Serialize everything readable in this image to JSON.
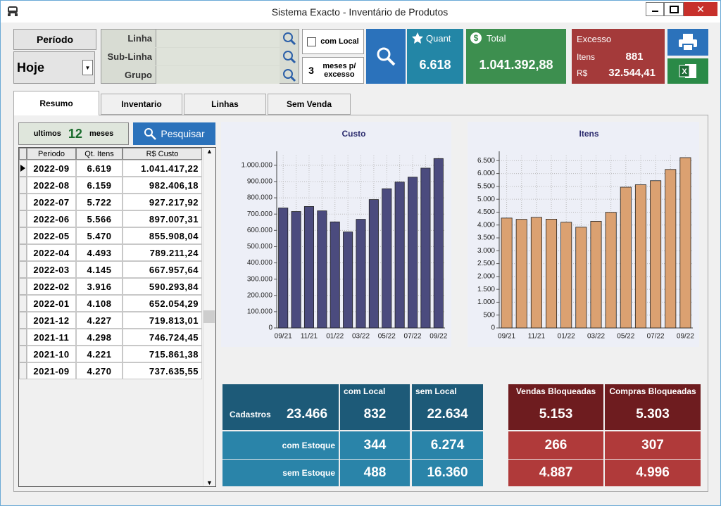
{
  "window": {
    "title": "Sistema Exacto - Inventário de Produtos"
  },
  "filters": {
    "periodo_label": "Período",
    "periodo_value": "Hoje",
    "linha": "Linha",
    "sub_linha": "Sub-Linha",
    "grupo": "Grupo",
    "com_local": "com Local",
    "meses_value": "3",
    "meses_label": "meses p/ excesso"
  },
  "kpis": {
    "quant_label": "Quant",
    "quant_value": "6.618",
    "total_label": "Total",
    "total_value": "1.041.392,88",
    "excesso_label": "Excesso",
    "itens_label": "Itens",
    "itens_value": "881",
    "rs_label": "R$",
    "rs_value": "32.544,41"
  },
  "tabs": [
    "Resumo",
    "Inventario",
    "Linhas",
    "Sem Venda"
  ],
  "range": {
    "prefix": "ultimos",
    "value": "12",
    "suffix": "meses",
    "button": "Pesquisar"
  },
  "table": {
    "columns": [
      "Periodo",
      "Qt. Itens",
      "R$ Custo"
    ],
    "rows": [
      [
        "2022-09",
        "6.619",
        "1.041.417,22"
      ],
      [
        "2022-08",
        "6.159",
        "982.406,18"
      ],
      [
        "2022-07",
        "5.722",
        "927.217,92"
      ],
      [
        "2022-06",
        "5.566",
        "897.007,31"
      ],
      [
        "2022-05",
        "5.470",
        "855.908,04"
      ],
      [
        "2022-04",
        "4.493",
        "789.211,24"
      ],
      [
        "2022-03",
        "4.145",
        "667.957,64"
      ],
      [
        "2022-02",
        "3.916",
        "590.293,84"
      ],
      [
        "2022-01",
        "4.108",
        "652.054,29"
      ],
      [
        "2021-12",
        "4.227",
        "719.813,01"
      ],
      [
        "2021-11",
        "4.298",
        "746.724,45"
      ],
      [
        "2021-10",
        "4.221",
        "715.861,38"
      ],
      [
        "2021-09",
        "4.270",
        "737.635,55"
      ]
    ]
  },
  "chart_data": [
    {
      "type": "bar",
      "title": "Custo",
      "color": "#4b4b7e",
      "grid": true,
      "categories": [
        "09/21",
        null,
        "11/21",
        null,
        "01/22",
        null,
        "03/22",
        null,
        "05/22",
        null,
        "07/22",
        null,
        "09/22"
      ],
      "values": [
        737635.55,
        715861.38,
        746724.45,
        719813.01,
        652054.29,
        590293.84,
        667957.64,
        789211.24,
        855908.04,
        897007.31,
        927217.92,
        982406.18,
        1041417.22
      ],
      "ylim": [
        0,
        1060000
      ],
      "yticks": [
        0,
        {
          "value": 100000,
          "label": "100.000"
        },
        {
          "value": 200000,
          "label": "200.000"
        },
        {
          "value": 300000,
          "label": "300.000"
        },
        {
          "value": 400000,
          "label": "400.000"
        },
        {
          "value": 500000,
          "label": "500.000"
        },
        {
          "value": 600000,
          "label": "600.000"
        },
        {
          "value": 700000,
          "label": "700.000"
        },
        {
          "value": 800000,
          "label": "800.000"
        },
        {
          "value": 900000,
          "label": "900.000"
        },
        {
          "value": 1000000,
          "label": "1.000.000"
        }
      ]
    },
    {
      "type": "bar",
      "title": "Itens",
      "color": "#dba171",
      "grid": true,
      "categories": [
        "09/21",
        null,
        "11/21",
        null,
        "01/22",
        null,
        "03/22",
        null,
        "05/22",
        null,
        "07/22",
        null,
        "09/22"
      ],
      "values": [
        4270,
        4221,
        4298,
        4227,
        4108,
        3916,
        4145,
        4493,
        5470,
        5566,
        5722,
        6159,
        6619
      ],
      "ylim": [
        0,
        6700
      ],
      "yticks": [
        0,
        500,
        {
          "value": 1000,
          "label": "1.000"
        },
        {
          "value": 1500,
          "label": "1.500"
        },
        {
          "value": 2000,
          "label": "2.000"
        },
        {
          "value": 2500,
          "label": "2.500"
        },
        {
          "value": 3000,
          "label": "3.000"
        },
        {
          "value": 3500,
          "label": "3.500"
        },
        {
          "value": 4000,
          "label": "4.000"
        },
        {
          "value": 4500,
          "label": "4.500"
        },
        {
          "value": 5000,
          "label": "5.000"
        },
        {
          "value": 5500,
          "label": "5.500"
        },
        {
          "value": 6000,
          "label": "6.000"
        },
        {
          "value": 6500,
          "label": "6.500"
        }
      ]
    }
  ],
  "summary": {
    "columns": [
      "com Local",
      "sem Local"
    ],
    "rows": [
      {
        "label": "Cadastros",
        "total": "23.466",
        "values": [
          "832",
          "22.634"
        ]
      },
      {
        "label": "com Estoque",
        "values": [
          "344",
          "6.274"
        ]
      },
      {
        "label": "sem Estoque",
        "values": [
          "488",
          "16.360"
        ]
      }
    ]
  },
  "blocked": {
    "columns": [
      "Vendas Bloqueadas",
      "Compras Bloqueadas"
    ],
    "rows": [
      [
        "5.153",
        "5.303"
      ],
      [
        "266",
        "307"
      ],
      [
        "4.887",
        "4.996"
      ]
    ]
  }
}
